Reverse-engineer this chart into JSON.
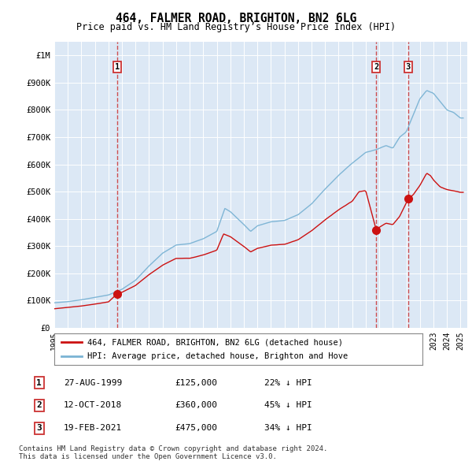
{
  "title": "464, FALMER ROAD, BRIGHTON, BN2 6LG",
  "subtitle": "Price paid vs. HM Land Registry’s House Price Index (HPI)",
  "background_color": "#ffffff",
  "plot_bg_color": "#dce8f5",
  "grid_color": "#c8d8e8",
  "ylim": [
    0,
    1050000
  ],
  "yticks": [
    0,
    100000,
    200000,
    300000,
    400000,
    500000,
    600000,
    700000,
    800000,
    900000,
    1000000
  ],
  "ytick_labels": [
    "£0",
    "£100K",
    "£200K",
    "£300K",
    "£400K",
    "£500K",
    "£600K",
    "£700K",
    "£800K",
    "£900K",
    "£1M"
  ],
  "hpi_color": "#7ab3d4",
  "price_color": "#cc1111",
  "vline_color": "#cc3333",
  "legend_box_color": "#cc1111",
  "legend_entries": [
    "464, FALMER ROAD, BRIGHTON, BN2 6LG (detached house)",
    "HPI: Average price, detached house, Brighton and Hove"
  ],
  "sale_labels": [
    "1",
    "2",
    "3"
  ],
  "sale_prices": [
    125000,
    360000,
    475000
  ],
  "sale_decimal_years": [
    1999.648,
    2018.781,
    2021.132
  ],
  "table_rows": [
    [
      "1",
      "27-AUG-1999",
      "£125,000",
      "22% ↓ HPI"
    ],
    [
      "2",
      "12-OCT-2018",
      "£360,000",
      "45% ↓ HPI"
    ],
    [
      "3",
      "19-FEB-2021",
      "£475,000",
      "34% ↓ HPI"
    ]
  ],
  "footer": "Contains HM Land Registry data © Crown copyright and database right 2024.\nThis data is licensed under the Open Government Licence v3.0."
}
